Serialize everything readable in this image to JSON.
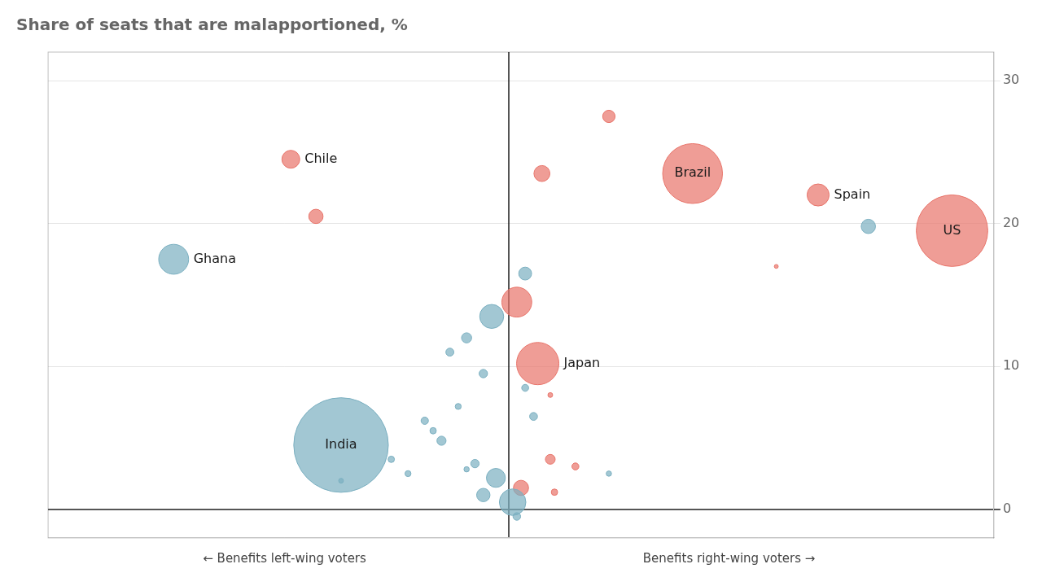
{
  "chart_data": {
    "type": "bubble",
    "title": "Share of seats that are malapportioned, %",
    "xlabel_left": "← Benefits left-wing voters",
    "xlabel_right": "Benefits right-wing voters →",
    "xlim": [
      -5.5,
      5.8
    ],
    "xticks": [
      0
    ],
    "ylim": [
      -2,
      32
    ],
    "yticks": [
      0,
      10,
      20,
      30
    ],
    "grid": true,
    "tick_labels": "y",
    "x": [
      -4.0,
      -2.6,
      -2.3,
      -2.0,
      1.2,
      0.4,
      2.2,
      3.7,
      4.3,
      5.3,
      0.2,
      0.1,
      -0.2,
      0.35,
      3.2,
      0.5,
      -0.5,
      -0.7,
      -0.3,
      0.2,
      -0.6,
      -1.0,
      -0.8,
      0.5,
      -0.4,
      0.8,
      -1.4,
      -1.2,
      -0.15,
      0.15,
      -0.3,
      0.05,
      0.1,
      -0.5,
      0.55,
      1.2,
      -2.0,
      0.3,
      -0.9
    ],
    "values": [
      17.5,
      24.5,
      20.5,
      4.5,
      27.5,
      23.5,
      23.5,
      22.0,
      19.8,
      19.5,
      16.5,
      14.5,
      13.5,
      10.2,
      17.0,
      8.0,
      12.0,
      11.0,
      9.5,
      8.5,
      7.2,
      6.2,
      4.8,
      3.5,
      3.2,
      3.0,
      3.5,
      2.5,
      2.2,
      1.5,
      1.0,
      0.5,
      -0.5,
      2.8,
      1.2,
      2.5,
      2.0,
      6.5,
      5.5
    ],
    "sizes": [
      700,
      250,
      160,
      7000,
      120,
      200,
      2800,
      380,
      160,
      4000,
      130,
      700,
      450,
      1400,
      12,
      18,
      80,
      50,
      55,
      38,
      28,
      42,
      65,
      75,
      55,
      38,
      32,
      28,
      280,
      180,
      140,
      550,
      45,
      22,
      32,
      22,
      18,
      48,
      32
    ],
    "colors": [
      "#7aafc0",
      "#e8746a",
      "#e8746a",
      "#7aafc0",
      "#e8746a",
      "#e8746a",
      "#e8746a",
      "#e8746a",
      "#7aafc0",
      "#e8746a",
      "#7aafc0",
      "#e8746a",
      "#7aafc0",
      "#e8746a",
      "#e8746a",
      "#e8746a",
      "#7aafc0",
      "#7aafc0",
      "#7aafc0",
      "#7aafc0",
      "#7aafc0",
      "#7aafc0",
      "#7aafc0",
      "#e8746a",
      "#7aafc0",
      "#e8746a",
      "#7aafc0",
      "#7aafc0",
      "#7aafc0",
      "#e8746a",
      "#7aafc0",
      "#7aafc0",
      "#7aafc0",
      "#7aafc0",
      "#e8746a",
      "#7aafc0",
      "#7aafc0",
      "#7aafc0",
      "#7aafc0"
    ],
    "annotations": [
      {
        "text": "Ghana",
        "x": -4.0,
        "y": 17.5
      },
      {
        "text": "Chile",
        "x": -2.6,
        "y": 24.5
      },
      {
        "text": "India",
        "x": -2.0,
        "y": 4.5
      },
      {
        "text": "Brazil",
        "x": 2.2,
        "y": 23.5
      },
      {
        "text": "Spain",
        "x": 3.7,
        "y": 22.0
      },
      {
        "text": "US",
        "x": 5.3,
        "y": 19.5
      },
      {
        "text": "Japan",
        "x": 0.35,
        "y": 10.2
      }
    ]
  }
}
